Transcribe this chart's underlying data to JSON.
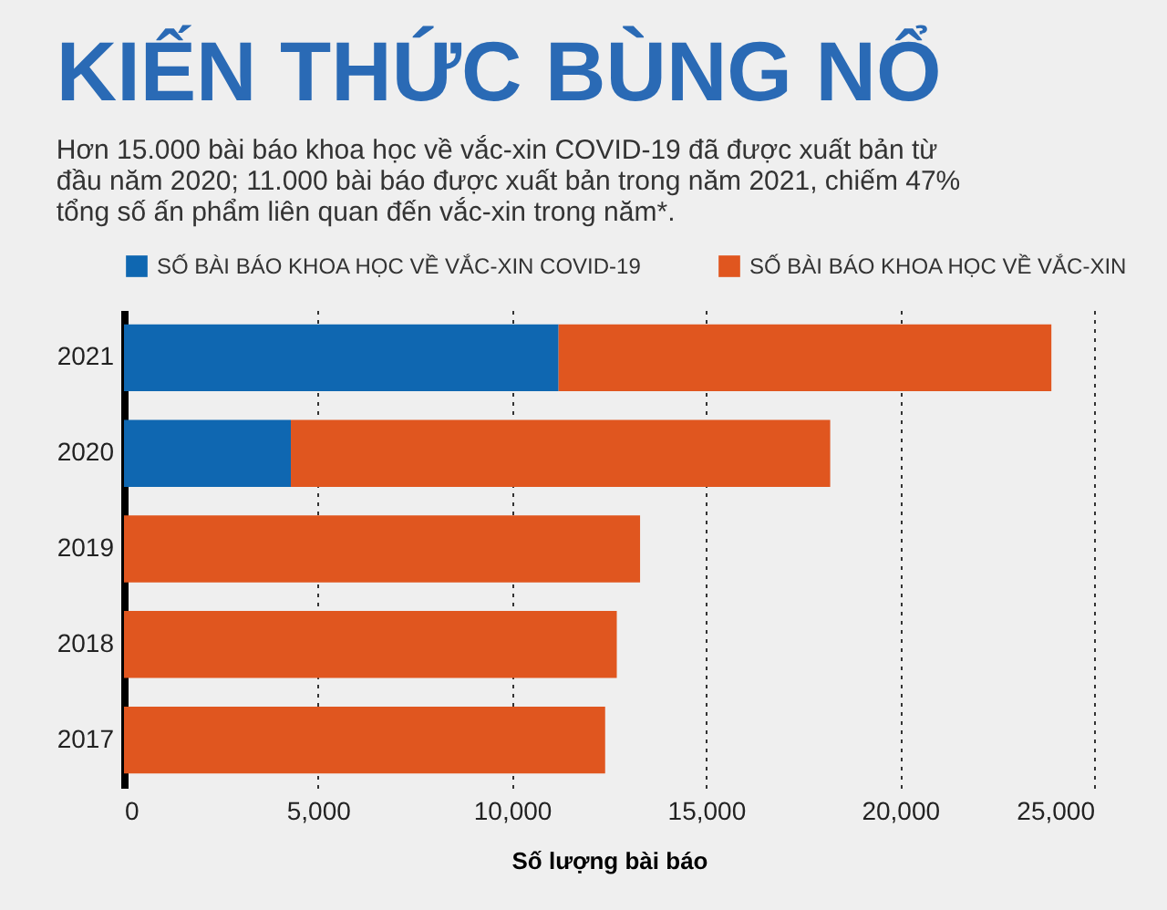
{
  "chart_data": {
    "type": "bar",
    "orientation": "horizontal",
    "stacked": true,
    "title": "KIẾN THỨC BÙNG NỔ",
    "subtitle": "Hơn 15.000 bài báo khoa học về vắc-xin COVID-19 đã được xuất bản từ đầu năm 2020; 11.000 bài báo được xuất bản trong năm 2021, chiếm 47% tổng số ấn phẩm liên quan đến vắc-xin trong năm*.",
    "xlabel": "Số lượng bài báo",
    "categories": [
      "2021",
      "2020",
      "2019",
      "2018",
      "2017"
    ],
    "series": [
      {
        "name": "SỐ BÀI BÁO KHOA HỌC VỀ VẮC-XIN COVID-19",
        "color": "#0f67b1",
        "values": [
          11200,
          4300,
          0,
          0,
          0
        ]
      },
      {
        "name": "SỐ BÀI BÁO KHOA HỌC VỀ VẮC-XIN",
        "color": "#e0561f",
        "values": [
          12700,
          13900,
          13300,
          12700,
          12400
        ]
      }
    ],
    "xlim": [
      0,
      25000
    ],
    "xticks": [
      0,
      {
        "value": 5000,
        "label": "5,000"
      },
      {
        "value": 10000,
        "label": "10,000"
      },
      {
        "value": 15000,
        "label": "15,000"
      },
      {
        "value": 20000,
        "label": "20,000"
      },
      {
        "value": 25000,
        "label": "25,000"
      }
    ],
    "grid": "x",
    "legend": "top"
  }
}
